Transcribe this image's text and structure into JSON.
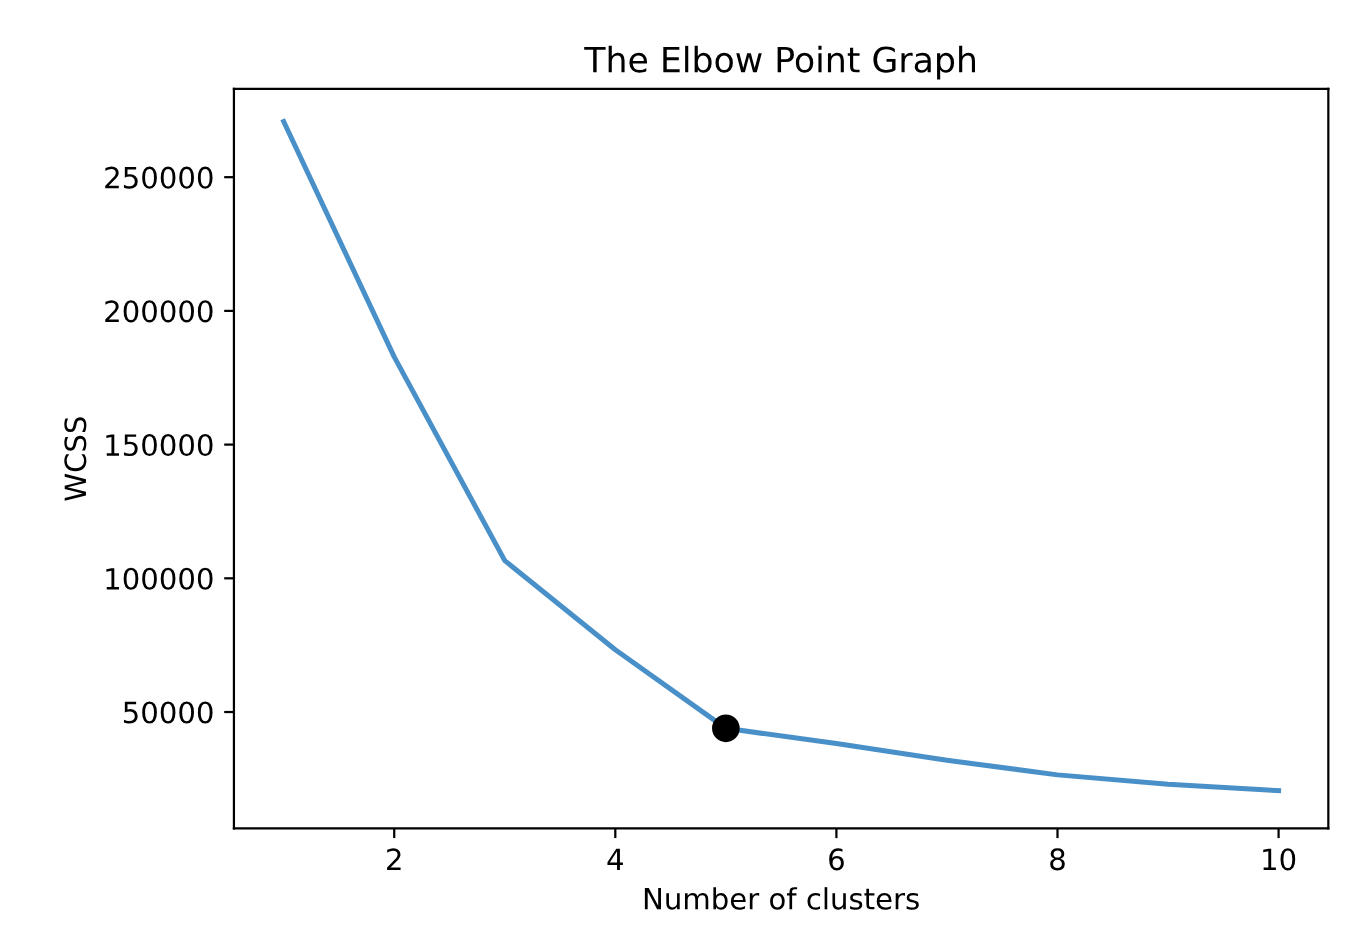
{
  "chart_data": {
    "type": "line",
    "title": "The Elbow Point Graph",
    "xlabel": "Number of clusters",
    "ylabel": "WCSS",
    "x": [
      1,
      2,
      3,
      4,
      5,
      6,
      7,
      8,
      9,
      10
    ],
    "series": [
      {
        "color": "#4a90c8",
        "values": [
          270800,
          182800,
          106600,
          73300,
          43900,
          38200,
          32000,
          26500,
          23000,
          20600
        ]
      },
      {
        "type": "scatter",
        "color": "#000000",
        "x": [
          5
        ],
        "values": [
          43900
        ],
        "marker": "circle"
      }
    ],
    "xlim": [
      0.55,
      10.45
    ],
    "ylim": [
      6500,
      283000
    ],
    "xticks": [
      2,
      4,
      6,
      8,
      10
    ],
    "yticks": [
      50000,
      100000,
      150000,
      200000,
      250000
    ],
    "grid": false,
    "legend": false
  }
}
